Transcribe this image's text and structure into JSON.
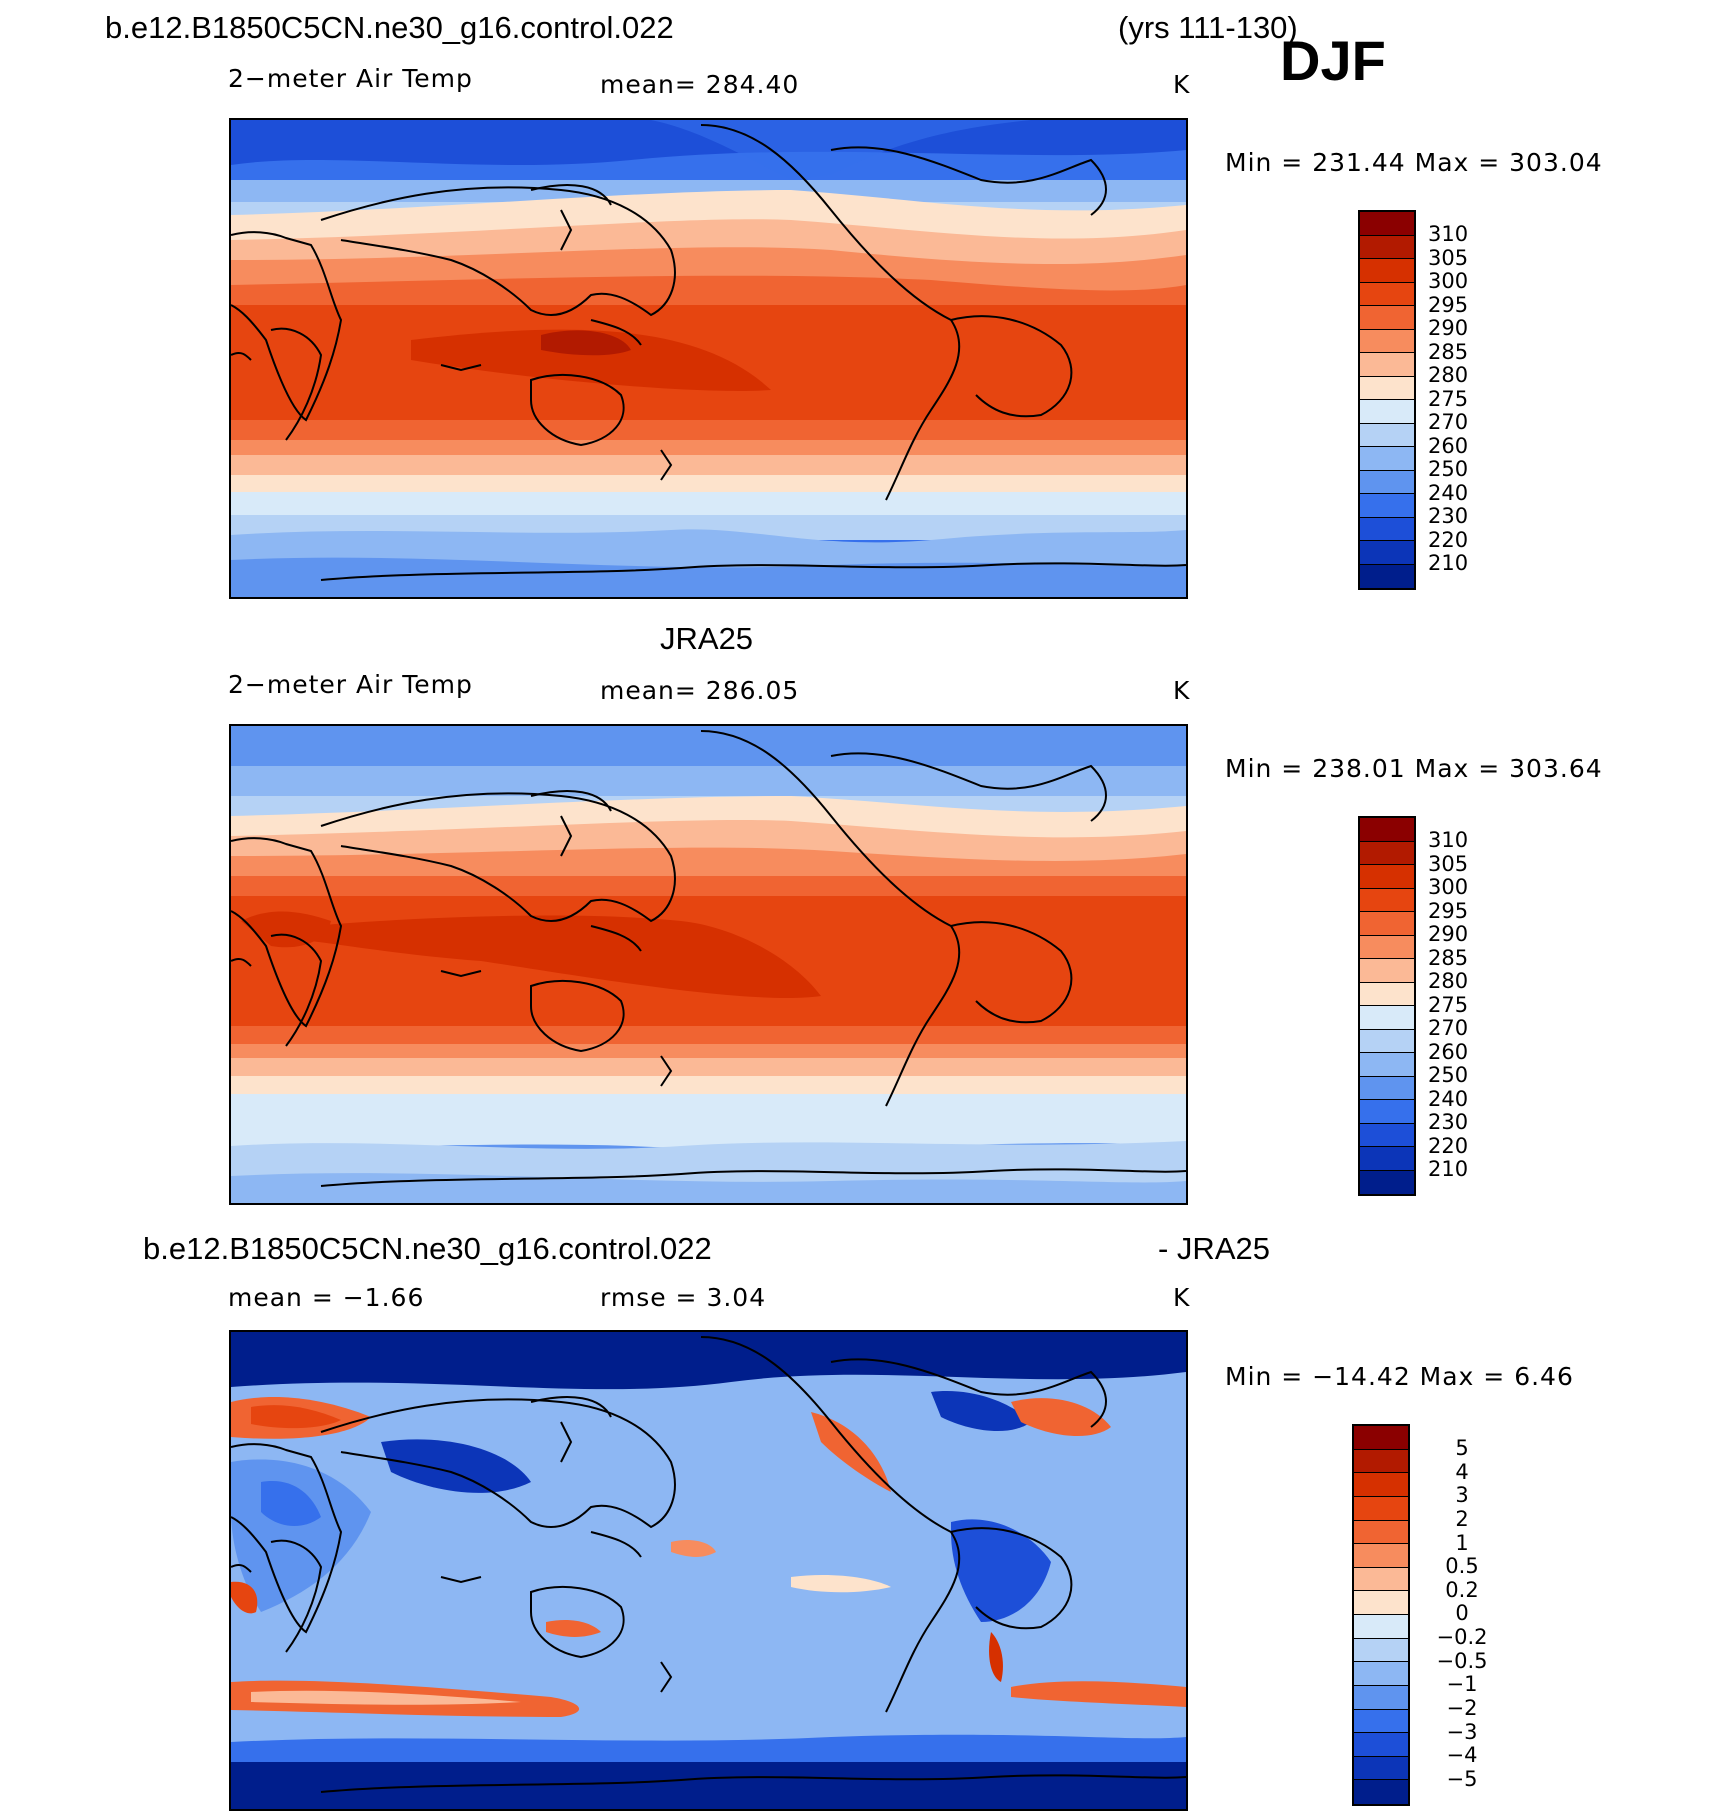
{
  "header": {
    "case_title": "b.e12.B1850C5CN.ne30_g16.control.022",
    "years": "(yrs 111-130)",
    "season": "DJF"
  },
  "panels": [
    {
      "title": "",
      "variable": "2−meter Air Temp",
      "stat": "mean=  284.40",
      "units": "K",
      "minmax": "Min  =  231.44  Max  =  303.04",
      "levels": [
        "310",
        "305",
        "300",
        "295",
        "290",
        "285",
        "280",
        "275",
        "270",
        "260",
        "250",
        "240",
        "230",
        "220",
        "210"
      ],
      "colors": [
        "#8b0000",
        "#b21a00",
        "#d63000",
        "#e64510",
        "#f06432",
        "#f78c5e",
        "#fbb996",
        "#fde3cc",
        "#d8eaf9",
        "#b5d2f5",
        "#8db7f3",
        "#5f94ef",
        "#3670ec",
        "#1d4fd8",
        "#0c35b8",
        "#001e8c"
      ]
    },
    {
      "title": "JRA25",
      "variable": "2−meter Air Temp",
      "stat": "mean=  286.05",
      "units": "K",
      "minmax": "Min  =  238.01  Max  =  303.64",
      "levels": [
        "310",
        "305",
        "300",
        "295",
        "290",
        "285",
        "280",
        "275",
        "270",
        "260",
        "250",
        "240",
        "230",
        "220",
        "210"
      ],
      "colors": [
        "#8b0000",
        "#b21a00",
        "#d63000",
        "#e64510",
        "#f06432",
        "#f78c5e",
        "#fbb996",
        "#fde3cc",
        "#d8eaf9",
        "#b5d2f5",
        "#8db7f3",
        "#5f94ef",
        "#3670ec",
        "#1d4fd8",
        "#0c35b8",
        "#001e8c"
      ]
    },
    {
      "title_left": "b.e12.B1850C5CN.ne30_g16.control.022",
      "title_right": "- JRA25",
      "variable": "mean  =    −1.66",
      "stat": "rmse  =     3.04",
      "units": "K",
      "minmax": "Min  =  −14.42  Max  =     6.46",
      "levels": [
        "5",
        "4",
        "3",
        "2",
        "1",
        "0.5",
        "0.2",
        "0",
        "−0.2",
        "−0.5",
        "−1",
        "−2",
        "−3",
        "−4",
        "−5"
      ],
      "colors": [
        "#8b0000",
        "#b21a00",
        "#d63000",
        "#e64510",
        "#f06432",
        "#f78c5e",
        "#fbb996",
        "#fde3cc",
        "#d8eaf9",
        "#b5d2f5",
        "#8db7f3",
        "#5f94ef",
        "#3670ec",
        "#1d4fd8",
        "#0c35b8",
        "#001e8c"
      ]
    }
  ]
}
